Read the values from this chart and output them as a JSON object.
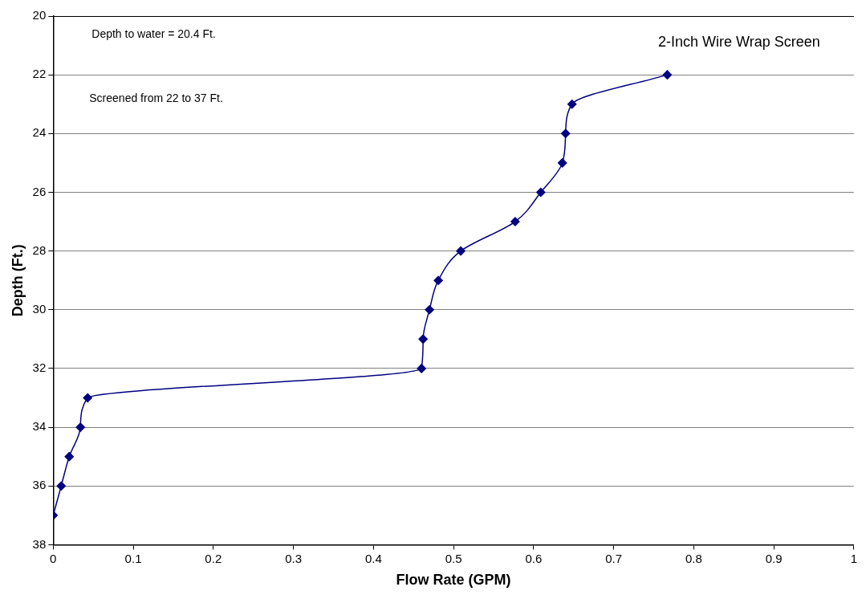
{
  "chart_data": {
    "type": "line",
    "xlabel": "Flow Rate (GPM)",
    "ylabel": "Depth (Ft.)",
    "annotations": [
      "Depth to water = 20.4 Ft.",
      "Screened from 22 to 37 Ft.",
      "2-Inch Wire Wrap Screen"
    ],
    "series": [
      {
        "color": "#000080",
        "x": [
          0.767,
          0.648,
          0.64,
          0.636,
          0.609,
          0.577,
          0.509,
          0.481,
          0.47,
          0.462,
          0.46,
          0.043,
          0.034,
          0.02,
          0.01,
          0
        ],
        "values": [
          22,
          23,
          24,
          25,
          26,
          27,
          28,
          29,
          30,
          31,
          32,
          33,
          34,
          35,
          36,
          37
        ]
      }
    ],
    "xlim": [
      0,
      1
    ],
    "xticks": [
      0,
      0.1,
      0.2,
      0.3,
      0.4,
      0.5,
      0.6,
      0.7,
      0.8,
      0.9,
      1
    ],
    "ylim": [
      38,
      20
    ],
    "yticks": [
      20,
      22,
      24,
      26,
      28,
      30,
      32,
      34,
      36,
      38
    ],
    "grid": "y",
    "marker": "diamond",
    "line_style": "solid",
    "legend": false
  }
}
